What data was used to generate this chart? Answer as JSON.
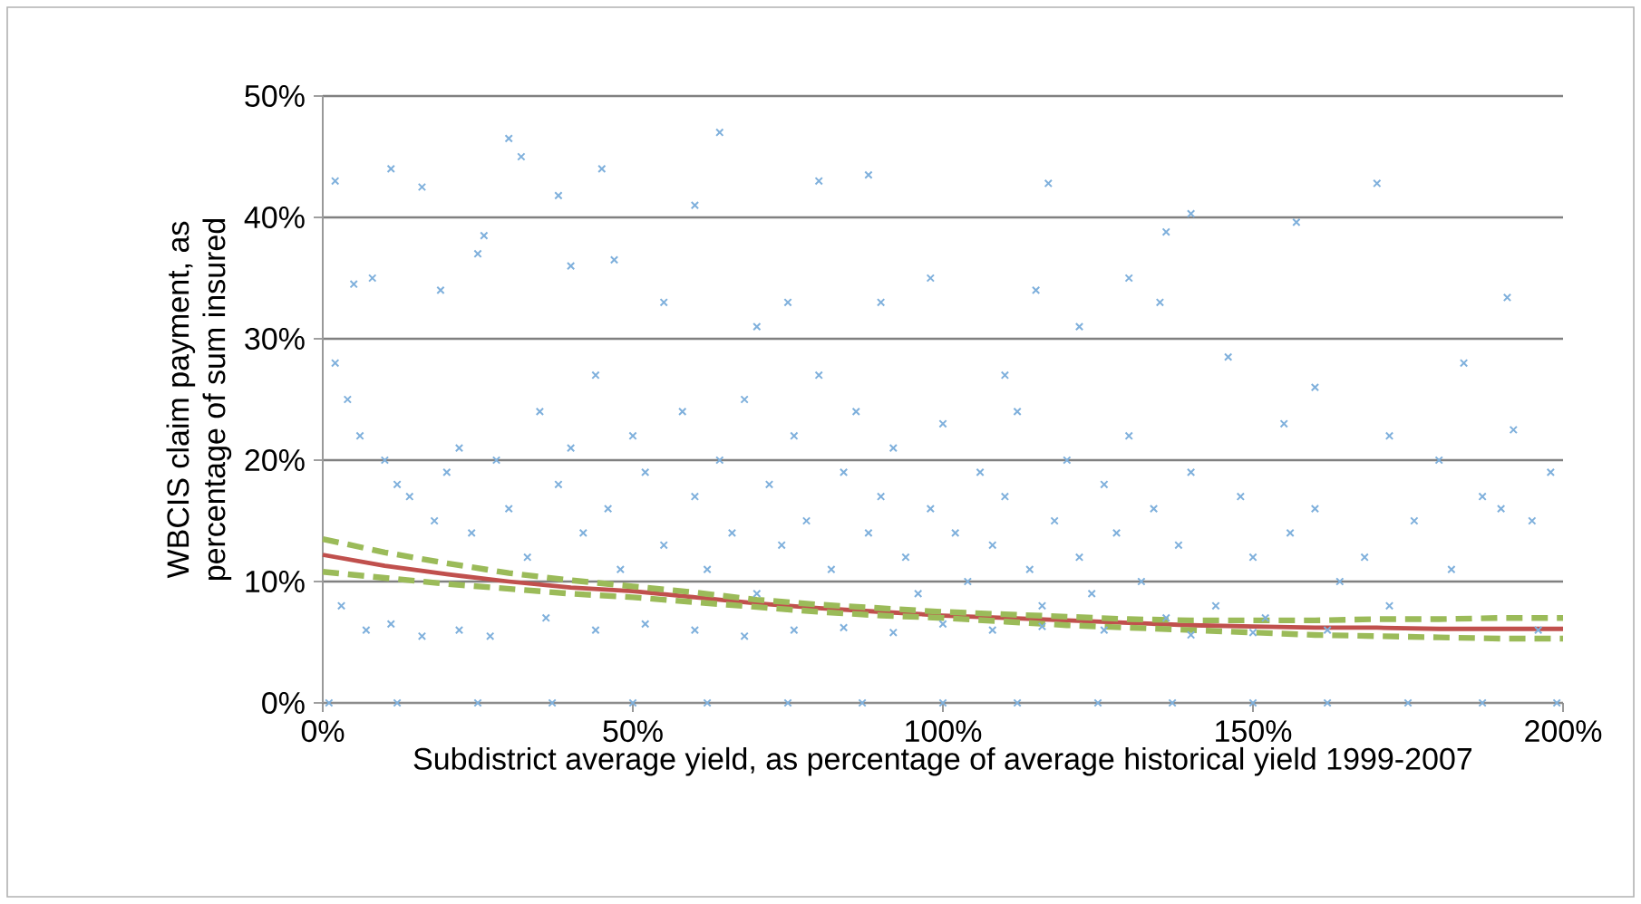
{
  "chart_data": {
    "type": "scatter",
    "xlabel": "Subdistrict average yield, as percentage of average historical yield 1999-2007",
    "ylabel": "WBCIS claim payment, as percentage of sum insured",
    "xlim": [
      0,
      200
    ],
    "ylim": [
      0,
      50
    ],
    "xticks": [
      {
        "value": 0,
        "label": "0%"
      },
      {
        "value": 50,
        "label": "50%"
      },
      {
        "value": 100,
        "label": "100%"
      },
      {
        "value": 150,
        "label": "150%"
      },
      {
        "value": 200,
        "label": "200%"
      }
    ],
    "yticks": [
      {
        "value": 0,
        "label": "0%"
      },
      {
        "value": 10,
        "label": "10%"
      },
      {
        "value": 20,
        "label": "20%"
      },
      {
        "value": 30,
        "label": "30%"
      },
      {
        "value": 40,
        "label": "40%"
      },
      {
        "value": 50,
        "label": "50%"
      }
    ],
    "grid": "y",
    "series": [
      {
        "marker": "cross",
        "color": "#7fb0dc",
        "x": [
          30,
          32,
          64,
          2,
          11,
          16,
          45,
          38,
          60,
          80,
          88,
          117,
          170,
          140,
          136,
          157,
          191,
          5,
          8,
          19,
          25,
          26,
          40,
          47,
          55,
          70,
          75,
          90,
          98,
          115,
          122,
          130,
          135,
          146,
          184,
          160,
          110,
          155,
          172,
          192,
          198,
          195,
          180,
          187,
          2,
          4,
          6,
          10,
          12,
          14,
          18,
          20,
          22,
          24,
          28,
          30,
          33,
          35,
          38,
          40,
          42,
          44,
          46,
          48,
          50,
          52,
          55,
          58,
          60,
          62,
          64,
          66,
          68,
          70,
          72,
          74,
          76,
          78,
          80,
          82,
          84,
          86,
          88,
          90,
          92,
          94,
          96,
          98,
          100,
          102,
          104,
          106,
          108,
          110,
          112,
          114,
          116,
          118,
          120,
          122,
          124,
          126,
          128,
          130,
          132,
          134,
          136,
          138,
          140,
          144,
          148,
          150,
          152,
          156,
          160,
          164,
          168,
          172,
          176,
          182,
          190,
          196,
          3,
          7,
          11,
          16,
          22,
          27,
          36,
          44,
          52,
          60,
          68,
          76,
          84,
          92,
          100,
          108,
          116,
          126,
          140,
          150,
          162,
          1,
          12,
          25,
          37,
          50,
          62,
          75,
          87,
          100,
          112,
          125,
          137,
          150,
          162,
          175,
          187,
          199
        ],
        "values": [
          46.5,
          45,
          47,
          43,
          44,
          42.5,
          44,
          41.8,
          41,
          43,
          43.5,
          42.8,
          42.8,
          40.3,
          38.8,
          39.6,
          33.4,
          34.5,
          35,
          34,
          37,
          38.5,
          36,
          36.5,
          33,
          31,
          33,
          33,
          35,
          34,
          31,
          35,
          33,
          28.5,
          28,
          26,
          27,
          23,
          22,
          22.5,
          19,
          15,
          20,
          17,
          28,
          25,
          22,
          20,
          18,
          17,
          15,
          19,
          21,
          14,
          20,
          16,
          12,
          24,
          18,
          21,
          14,
          27,
          16,
          11,
          22,
          19,
          13,
          24,
          17,
          11,
          20,
          14,
          25,
          9,
          18,
          13,
          22,
          15,
          27,
          11,
          19,
          24,
          14,
          17,
          21,
          12,
          9,
          16,
          23,
          14,
          10,
          19,
          13,
          17,
          24,
          11,
          8,
          15,
          20,
          12,
          9,
          18,
          14,
          22,
          10,
          16,
          7,
          13,
          19,
          8,
          17,
          12,
          7,
          14,
          16,
          10,
          12,
          8,
          15,
          11,
          16,
          6,
          8,
          6,
          6.5,
          5.5,
          6,
          5.5,
          7,
          6,
          6.5,
          6,
          5.5,
          6,
          6.2,
          5.8,
          6.5,
          6,
          6.3,
          6,
          5.6,
          5.8,
          6,
          0,
          0,
          0,
          0,
          0,
          0,
          0,
          0,
          0,
          0,
          0,
          0,
          0,
          0,
          0,
          0,
          0
        ]
      },
      {
        "type": "line",
        "line_style": "solid",
        "color": "#c0504d",
        "x": [
          0,
          10,
          20,
          30,
          40,
          50,
          60,
          70,
          80,
          90,
          100,
          110,
          120,
          130,
          140,
          150,
          160,
          170,
          180,
          190,
          200
        ],
        "values": [
          12.2,
          11.3,
          10.6,
          10.0,
          9.5,
          9.2,
          8.7,
          8.2,
          7.8,
          7.5,
          7.2,
          7.0,
          6.8,
          6.6,
          6.4,
          6.3,
          6.2,
          6.2,
          6.1,
          6.1,
          6.1
        ]
      },
      {
        "type": "line",
        "line_style": "dashed",
        "color": "#9bbb59",
        "x": [
          0,
          10,
          20,
          30,
          40,
          50,
          60,
          70,
          80,
          90,
          100,
          110,
          120,
          130,
          140,
          150,
          160,
          170,
          180,
          190,
          200
        ],
        "values": [
          13.5,
          12.4,
          11.5,
          10.7,
          10.1,
          9.6,
          9.1,
          8.5,
          8.1,
          7.8,
          7.5,
          7.3,
          7.1,
          6.9,
          6.8,
          6.8,
          6.8,
          6.9,
          6.9,
          7.0,
          7.0
        ]
      },
      {
        "type": "line",
        "line_style": "dashed",
        "color": "#9bbb59",
        "x": [
          0,
          10,
          20,
          30,
          40,
          50,
          60,
          70,
          80,
          90,
          100,
          110,
          120,
          130,
          140,
          150,
          160,
          170,
          180,
          190,
          200
        ],
        "values": [
          10.8,
          10.3,
          9.8,
          9.4,
          9.0,
          8.7,
          8.3,
          7.9,
          7.5,
          7.2,
          7.0,
          6.7,
          6.4,
          6.2,
          6.0,
          5.8,
          5.6,
          5.5,
          5.4,
          5.3,
          5.3
        ]
      }
    ]
  }
}
